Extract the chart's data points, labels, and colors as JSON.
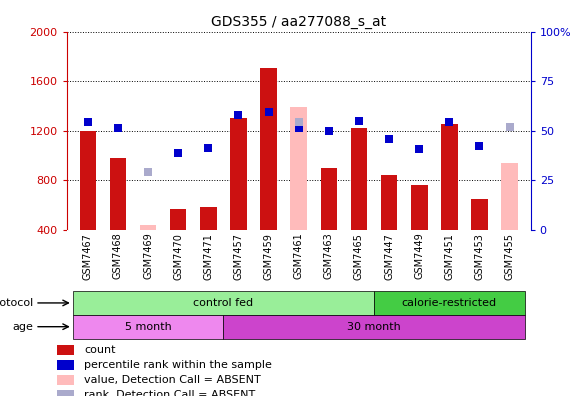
{
  "title": "GDS355 / aa277088_s_at",
  "samples": [
    "GSM7467",
    "GSM7468",
    "GSM7469",
    "GSM7470",
    "GSM7471",
    "GSM7457",
    "GSM7459",
    "GSM7461",
    "GSM7463",
    "GSM7465",
    "GSM7447",
    "GSM7449",
    "GSM7451",
    "GSM7453",
    "GSM7455"
  ],
  "red_bars": [
    1200,
    980,
    null,
    570,
    580,
    1300,
    1710,
    null,
    900,
    1220,
    845,
    760,
    1250,
    650,
    null
  ],
  "pink_bars": [
    null,
    null,
    440,
    null,
    null,
    null,
    null,
    1390,
    null,
    null,
    null,
    null,
    null,
    null,
    940
  ],
  "blue_squares": [
    1270,
    1220,
    null,
    1020,
    1060,
    1330,
    1350,
    1220,
    1200,
    1280,
    1130,
    1050,
    1270,
    1080,
    1230
  ],
  "lightblue_squares": [
    null,
    null,
    870,
    null,
    null,
    null,
    null,
    1270,
    null,
    null,
    null,
    null,
    null,
    null,
    1230
  ],
  "ylim_left": [
    400,
    2000
  ],
  "ylim_right": [
    0,
    100
  ],
  "yticks_left": [
    400,
    800,
    1200,
    1600,
    2000
  ],
  "yticks_right": [
    0,
    25,
    50,
    75,
    100
  ],
  "left_axis_color": "#cc0000",
  "right_axis_color": "#0000cc",
  "bar_color_red": "#cc1111",
  "bar_color_pink": "#ffbbbb",
  "square_color_blue": "#0000cc",
  "square_color_lightblue": "#aaaacc",
  "protocol_control_fed_color": "#99ee99",
  "protocol_calorie_restricted_color": "#44cc44",
  "age_5month_color": "#ee88ee",
  "age_30month_color": "#cc44cc",
  "tick_bg_color": "#cccccc",
  "grid_color": "#000000"
}
